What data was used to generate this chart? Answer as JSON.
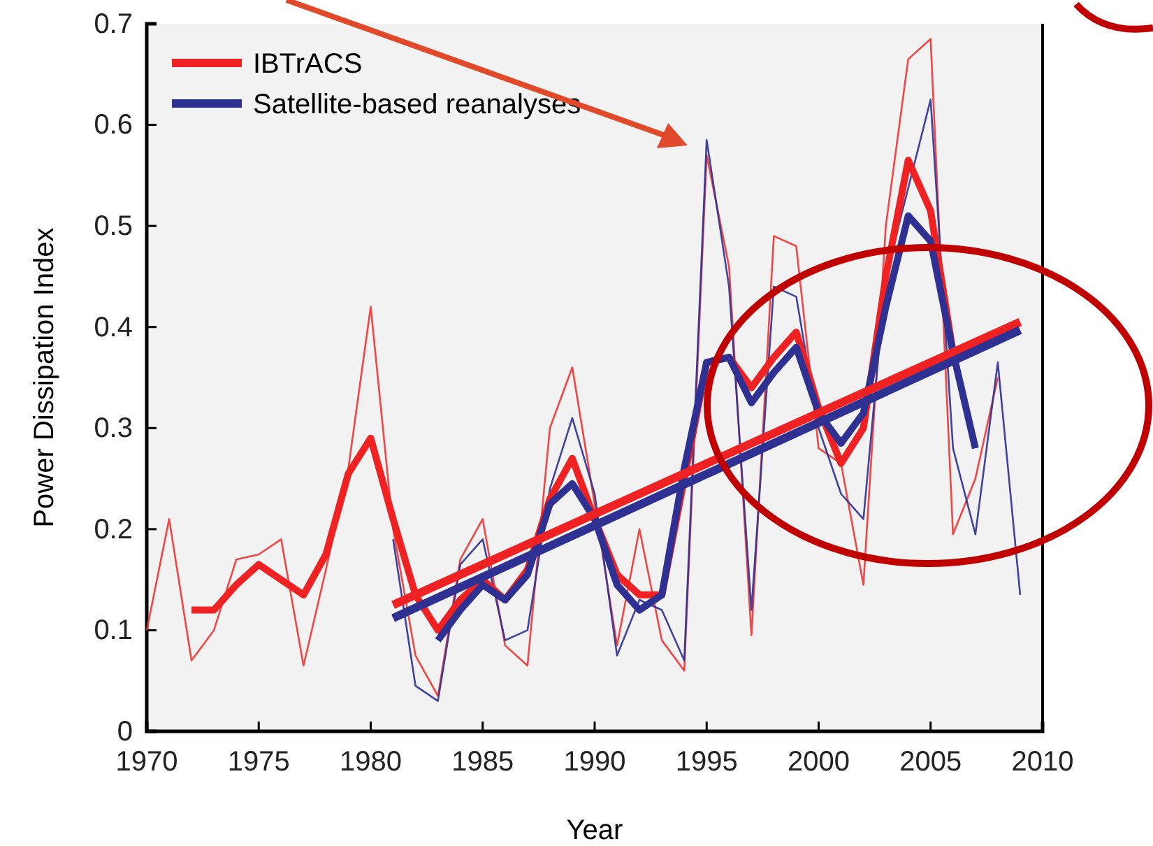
{
  "chart_data": {
    "type": "line",
    "xlabel": "Year",
    "ylabel": "Power Dissipation Index",
    "xlim": [
      1970,
      2010
    ],
    "xticks": [
      1970,
      1975,
      1980,
      1985,
      1990,
      1995,
      2000,
      2005,
      2010
    ],
    "ylim": [
      0,
      0.7
    ],
    "yticks": [
      0,
      0.1,
      0.2,
      0.3,
      0.4,
      0.5,
      0.6,
      0.7
    ],
    "grid": false,
    "legend": "top left",
    "marker": "none",
    "line_style": "solid",
    "series": [
      {
        "color": "#ee3333",
        "x": [
          1970,
          1971,
          1972,
          1973,
          1974,
          1975,
          1976,
          1977,
          1978,
          1979,
          1980,
          1981,
          1982,
          1983,
          1984,
          1985,
          1986,
          1987,
          1988,
          1989,
          1990,
          1991,
          1992,
          1993,
          1994,
          1995,
          1996,
          1997,
          1998,
          1999,
          2000,
          2001,
          2002,
          2003,
          2004,
          2005,
          2006,
          2007,
          2008
        ],
        "values": [
          0.1,
          0.21,
          0.07,
          0.1,
          0.17,
          0.175,
          0.19,
          0.065,
          0.16,
          0.26,
          0.42,
          0.2,
          0.075,
          0.035,
          0.17,
          0.21,
          0.085,
          0.065,
          0.3,
          0.36,
          0.225,
          0.085,
          0.2,
          0.09,
          0.06,
          0.57,
          0.46,
          0.095,
          0.49,
          0.48,
          0.28,
          0.265,
          0.145,
          0.5,
          0.665,
          0.685,
          0.195,
          0.25,
          0.35
        ]
      },
      {
        "color": "#2e3192",
        "x": [
          1981,
          1982,
          1983,
          1984,
          1985,
          1986,
          1987,
          1988,
          1989,
          1990,
          1991,
          1992,
          1993,
          1994,
          1995,
          1996,
          1997,
          1998,
          1999,
          2000,
          2001,
          2002,
          2003,
          2004,
          2005,
          2006,
          2007,
          2008,
          2009
        ],
        "values": [
          0.19,
          0.045,
          0.03,
          0.165,
          0.19,
          0.09,
          0.1,
          0.24,
          0.31,
          0.235,
          0.075,
          0.13,
          0.12,
          0.07,
          0.585,
          0.44,
          0.12,
          0.44,
          0.43,
          0.3,
          0.235,
          0.21,
          0.45,
          null,
          0.625,
          0.28,
          0.195,
          0.365,
          0.135
        ]
      },
      {
        "name": "IBTrACS",
        "color": "#ee2222",
        "x": [
          1972,
          1973,
          1974,
          1975,
          1976,
          1977,
          1978,
          1979,
          1980,
          1981,
          1982,
          1983,
          1984,
          1985,
          1986,
          1987,
          1988,
          1989,
          1990,
          1991,
          1992,
          1993,
          1994,
          1995,
          1996,
          1997,
          1998,
          1999,
          2000,
          2001,
          2002,
          2003,
          2004,
          2005,
          2006
        ],
        "values": [
          0.12,
          0.12,
          0.145,
          0.165,
          0.15,
          0.135,
          0.175,
          0.255,
          0.29,
          0.21,
          0.135,
          0.1,
          0.13,
          0.15,
          0.13,
          0.16,
          0.23,
          0.27,
          0.21,
          0.155,
          0.135,
          0.135,
          0.25,
          0.365,
          0.37,
          0.34,
          0.37,
          0.395,
          0.32,
          0.265,
          0.3,
          0.45,
          0.565,
          0.515,
          0.375
        ]
      },
      {
        "name": "Satellite-based reanalyses",
        "color": "#2e3192",
        "x": [
          1983,
          1984,
          1985,
          1986,
          1987,
          1988,
          1989,
          1990,
          1991,
          1992,
          1993,
          1994,
          1995,
          1996,
          1997,
          1998,
          1999,
          2000,
          2001,
          2002,
          2003,
          2004,
          2005,
          2006,
          2007
        ],
        "values": [
          0.09,
          0.12,
          0.145,
          0.13,
          0.155,
          0.225,
          0.245,
          0.21,
          0.145,
          0.12,
          0.135,
          0.26,
          0.365,
          0.37,
          0.325,
          0.355,
          0.38,
          0.315,
          0.285,
          0.315,
          0.42,
          0.51,
          0.485,
          0.375,
          0.28
        ]
      },
      {
        "color": "#ee2222",
        "x": [
          1981,
          2009
        ],
        "values": [
          0.125,
          0.405
        ]
      },
      {
        "color": "#2e3192",
        "x": [
          1981,
          2009
        ],
        "values": [
          0.112,
          0.397
        ]
      }
    ]
  }
}
